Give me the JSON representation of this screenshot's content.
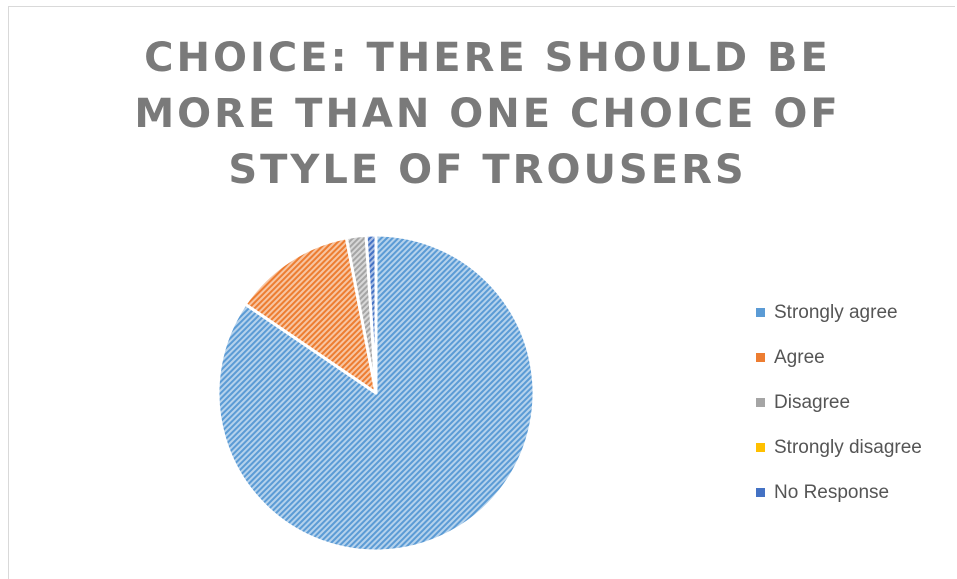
{
  "chart_data": {
    "type": "pie",
    "title": "CHOICE: THERE SHOULD BE MORE THAN ONE CHOICE OF STYLE OF TROUSERS",
    "title_lines": [
      "CHOICE:  THERE SHOULD BE",
      "MORE THAN ONE CHOICE OF",
      "STYLE OF TROUSERS"
    ],
    "categories": [
      "Strongly agree",
      "Agree",
      "Disagree",
      "Strongly disagree",
      "No Response"
    ],
    "values": [
      84.5,
      12.5,
      2.0,
      0,
      1.0
    ],
    "colors": [
      "#5b9bd5",
      "#ed7d31",
      "#a5a5a5",
      "#ffc000",
      "#4472c4"
    ],
    "legend_position": "right",
    "pattern": "diagonal-hatch"
  }
}
